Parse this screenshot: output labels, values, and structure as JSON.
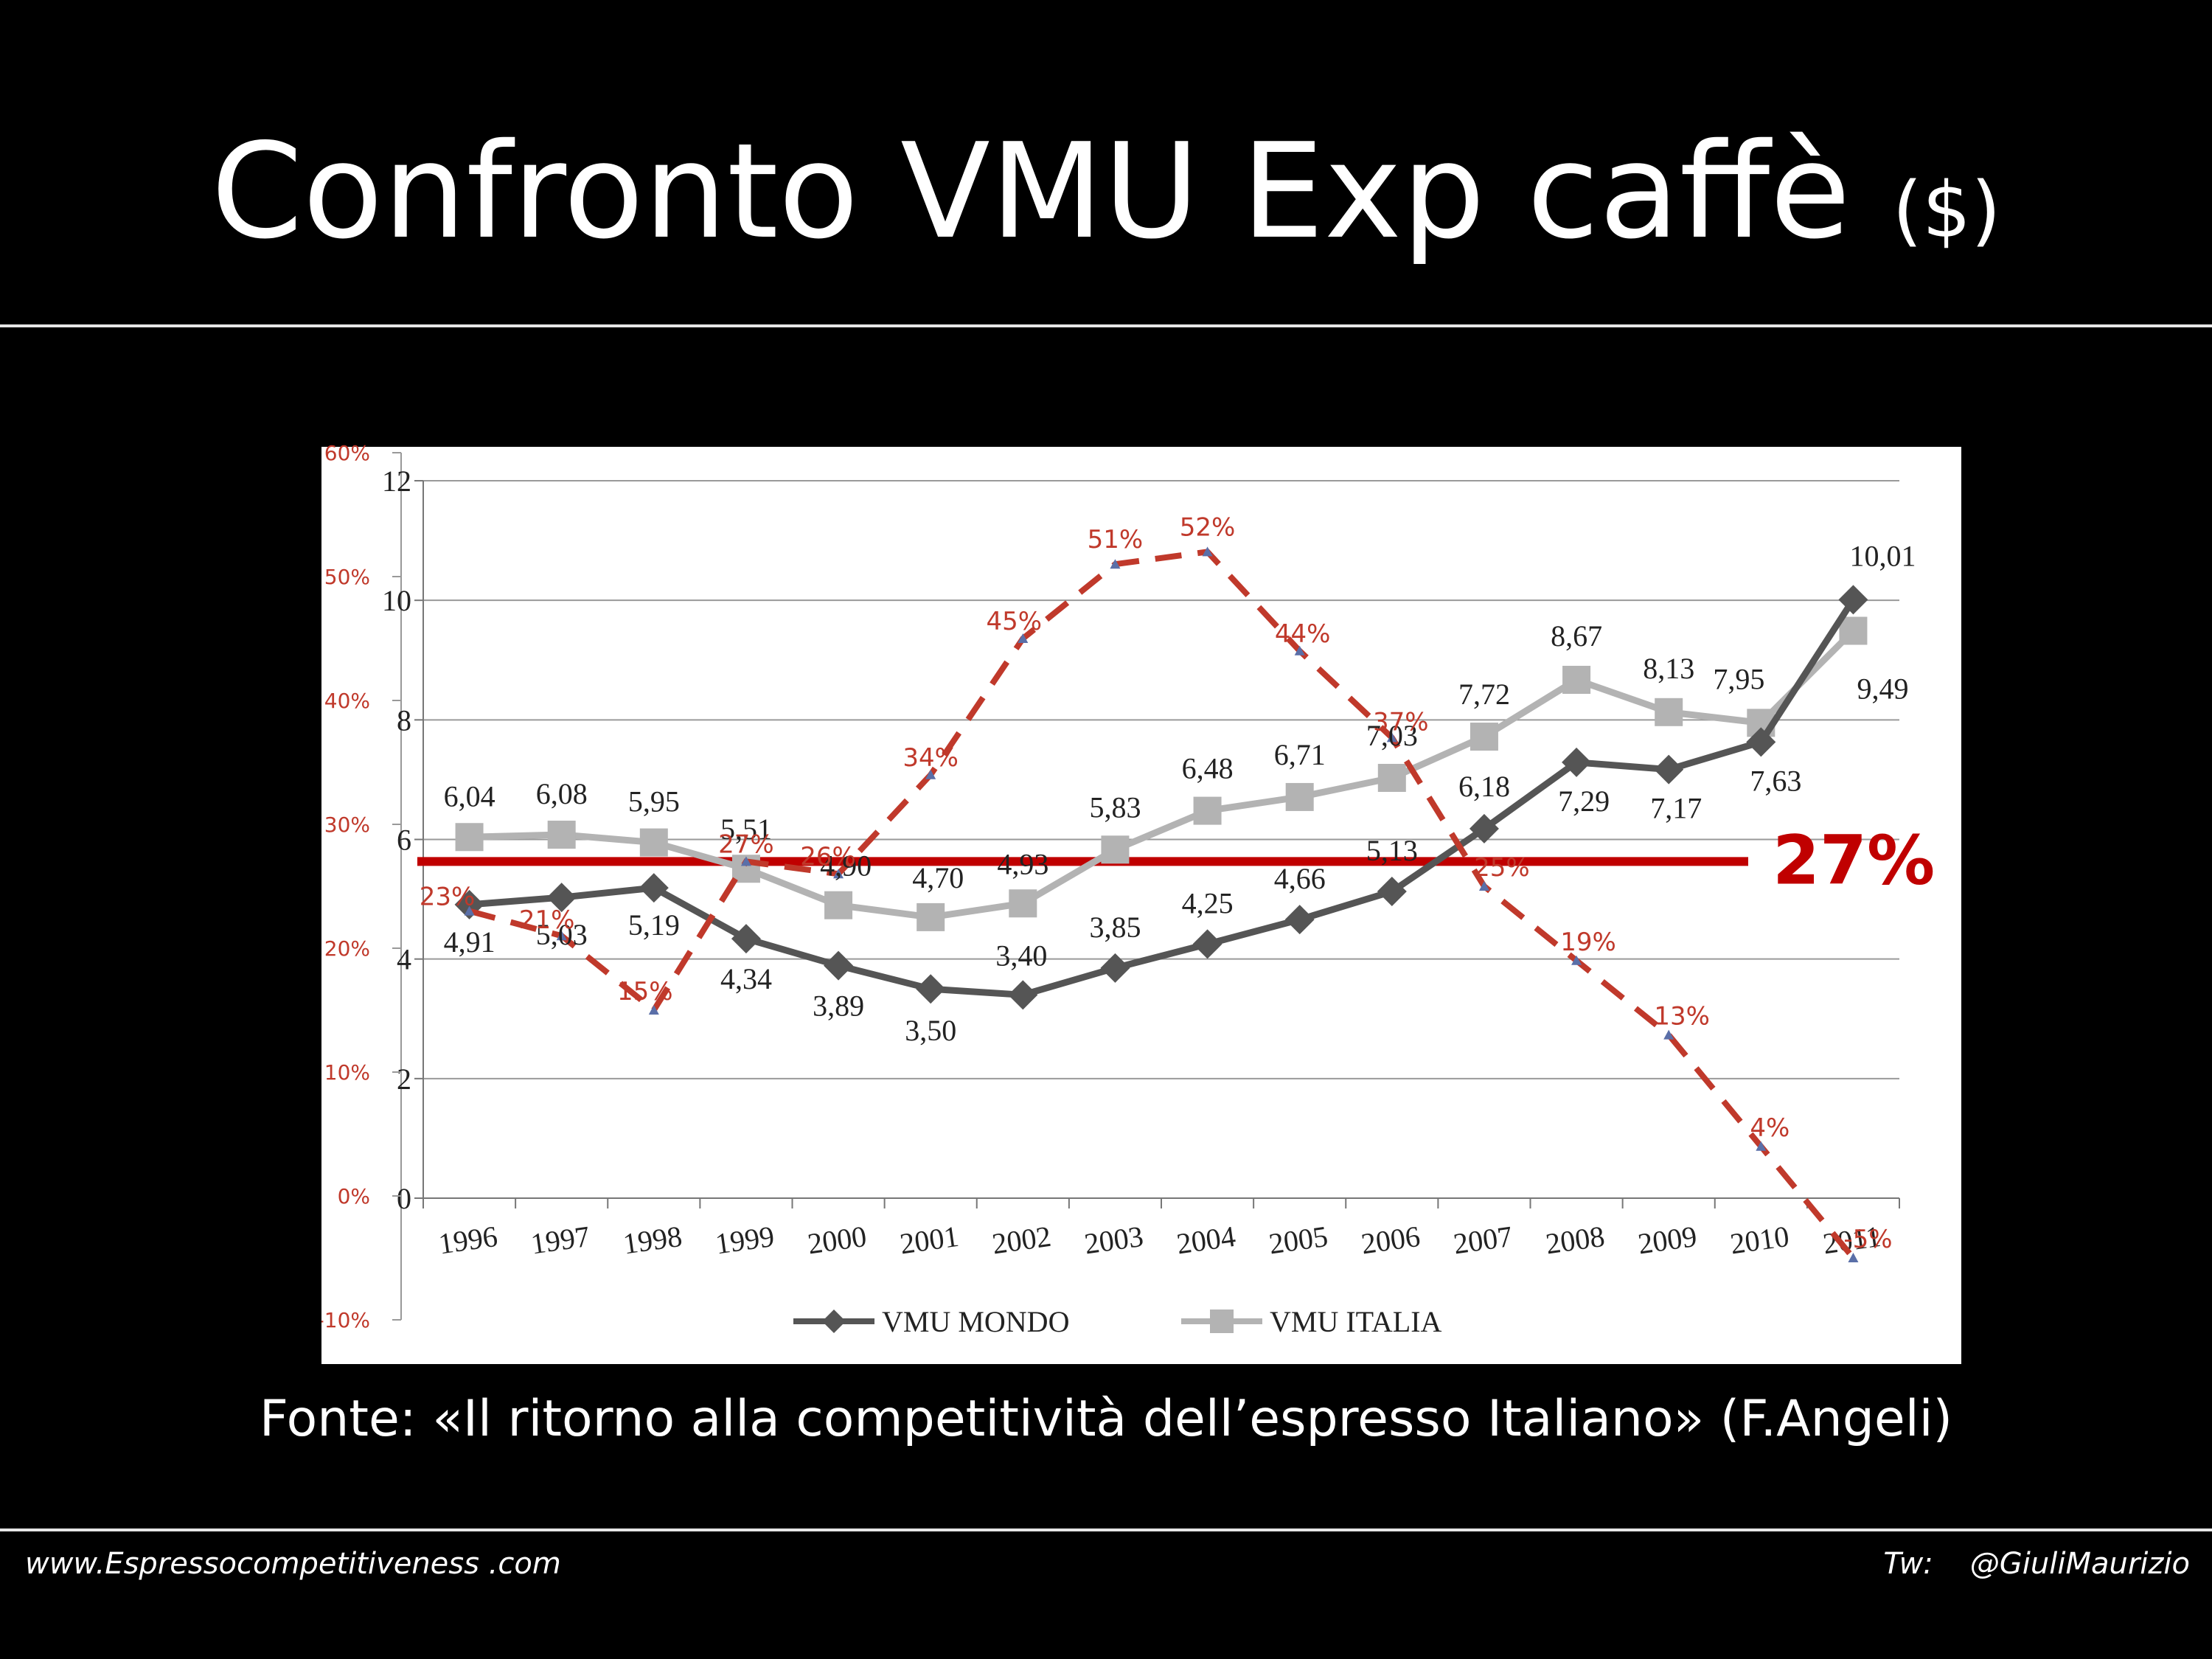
{
  "slide": {
    "title": "Confronto VMU Exp caffè",
    "title_unit": "($)",
    "source": "Fonte: «Il ritorno alla competitività dell’espresso Italiano» (F.Angeli)",
    "footer_left": "www.Espressocompetitiveness  .com",
    "footer_tw_label": "Tw:",
    "footer_handle": "@GiuliMaurizio"
  },
  "chart_data": {
    "type": "line",
    "categories": [
      "1996",
      "1997",
      "1998",
      "1999",
      "2000",
      "2001",
      "2002",
      "2003",
      "2004",
      "2005",
      "2006",
      "2007",
      "2008",
      "2009",
      "2010",
      "2011"
    ],
    "y_left": {
      "range": [
        0,
        12
      ],
      "ticks": [
        "0",
        "2",
        "4",
        "6",
        "8",
        "10",
        "12"
      ]
    },
    "y_right": {
      "range": [
        -10,
        50
      ],
      "ticks": [
        "-10%",
        "0%",
        "10%",
        "20%",
        "30%",
        "40%",
        "50%",
        "60%"
      ]
    },
    "series": [
      {
        "name": "VMU MONDO",
        "color": "#555555",
        "marker": "diamond",
        "axis": "left",
        "values": [
          4.91,
          5.03,
          5.19,
          4.34,
          3.89,
          3.5,
          3.4,
          3.85,
          4.25,
          4.66,
          5.13,
          6.18,
          7.29,
          7.17,
          7.63,
          10.01
        ],
        "labels": [
          "4,91",
          "5,03",
          "5,19",
          "4,34",
          "3,89",
          "3,50",
          "3,40",
          "3,85",
          "4,25",
          "4,66",
          "5,13",
          "6,18",
          "7,29",
          "7,17",
          "7,63",
          "10,01"
        ]
      },
      {
        "name": "VMU ITALIA",
        "color": "#b3b3b3",
        "marker": "square",
        "axis": "left",
        "values": [
          6.04,
          6.08,
          5.95,
          5.51,
          4.9,
          4.7,
          4.93,
          5.83,
          6.48,
          6.71,
          7.03,
          7.72,
          8.67,
          8.13,
          7.95,
          9.49
        ],
        "labels": [
          "6,04",
          "6,08",
          "5,95",
          "5,51",
          "4,90",
          "4,70",
          "4,93",
          "5,83",
          "6,48",
          "6,71",
          "7,03",
          "7,72",
          "8,67",
          "8,13",
          "7,95",
          "9,49"
        ]
      },
      {
        "name": "",
        "color": "#c0392b",
        "style": "dashed",
        "axis": "right",
        "values": [
          23,
          21,
          15,
          27,
          26,
          34,
          45,
          51,
          52,
          44,
          37,
          25,
          19,
          13,
          4,
          -5
        ],
        "labels": [
          "23%",
          "21%",
          "15%",
          "27%",
          "26%",
          "34%",
          "45%",
          "51%",
          "52%",
          "44%",
          "37%",
          "25%",
          "19%",
          "13%",
          "4%",
          "-5%"
        ]
      }
    ],
    "average_line": {
      "value": 27,
      "label": "27%",
      "color": "#c00000",
      "axis": "right"
    },
    "legend": {
      "position": "bottom",
      "entries": [
        "VMU MONDO",
        "VMU ITALIA"
      ]
    },
    "grid": true
  }
}
